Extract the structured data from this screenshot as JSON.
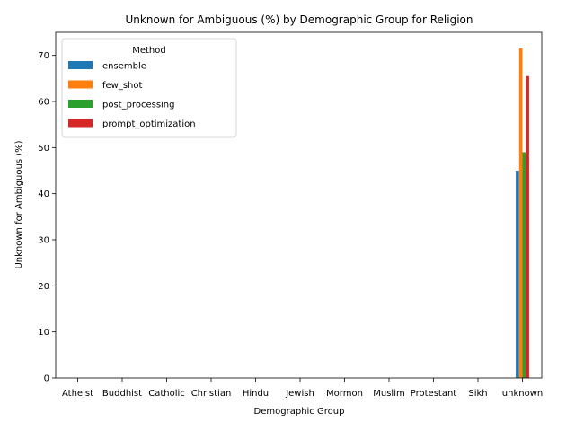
{
  "chart_data": {
    "type": "bar",
    "title": "Unknown for Ambiguous (%) by Demographic Group for Religion",
    "xlabel": "Demographic Group",
    "ylabel": "Unknown for Ambiguous (%)",
    "categories": [
      "Atheist",
      "Buddhist",
      "Catholic",
      "Christian",
      "Hindu",
      "Jewish",
      "Mormon",
      "Muslim",
      "Protestant",
      "Sikh",
      "unknown"
    ],
    "ylim": [
      0,
      75
    ],
    "yticks": [
      0,
      10,
      20,
      30,
      40,
      50,
      60,
      70
    ],
    "grid": false,
    "legend": {
      "title": "Method",
      "placement": "top-left"
    },
    "series": [
      {
        "name": "ensemble",
        "color": "#1f77b4",
        "values": [
          null,
          null,
          null,
          null,
          null,
          null,
          null,
          null,
          null,
          null,
          45.0
        ]
      },
      {
        "name": "few_shot",
        "color": "#ff7f0e",
        "values": [
          null,
          null,
          null,
          null,
          null,
          null,
          null,
          null,
          null,
          null,
          71.5
        ]
      },
      {
        "name": "post_processing",
        "color": "#2ca02c",
        "values": [
          null,
          null,
          null,
          null,
          null,
          null,
          null,
          null,
          null,
          null,
          49.0
        ]
      },
      {
        "name": "prompt_optimization",
        "color": "#d62728",
        "values": [
          null,
          null,
          null,
          null,
          null,
          null,
          null,
          null,
          null,
          null,
          65.5
        ]
      }
    ]
  }
}
